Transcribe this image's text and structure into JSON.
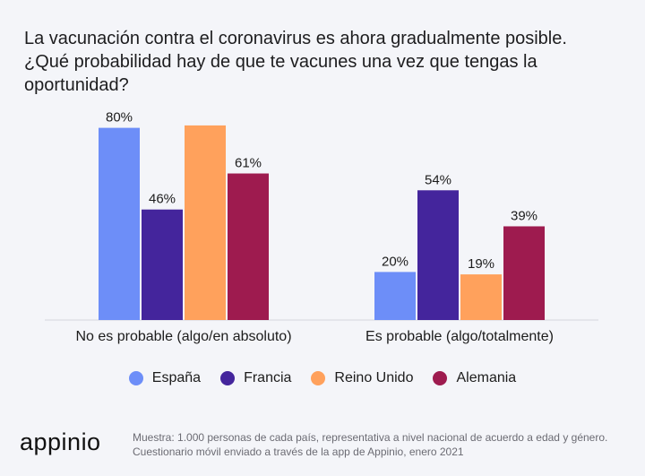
{
  "title_lines": [
    "La vacunación contra el coronavirus es ahora gradualmente posible.",
    "¿Qué probabilidad hay de que te vacunes una vez que tengas la",
    "oportunidad?"
  ],
  "chart_data": {
    "type": "bar",
    "title": "La vacunación contra el coronavirus es ahora gradualmente posible. ¿Qué probabilidad hay de que te vacunes una vez que tengas la oportunidad?",
    "categories": [
      "No es probable (algo/en absoluto)",
      "Es probable (algo/totalmente)"
    ],
    "series": [
      {
        "name": "España",
        "color": "#6d8ef8",
        "values": [
          80,
          20
        ],
        "labels": [
          "80%",
          "20%"
        ]
      },
      {
        "name": "Francia",
        "color": "#44259c",
        "values": [
          46,
          54
        ],
        "labels": [
          "46%",
          "54%"
        ]
      },
      {
        "name": "Reino Unido",
        "color": "#ffa15c",
        "values": [
          81,
          19
        ],
        "labels": [
          "",
          "19%"
        ]
      },
      {
        "name": "Alemania",
        "color": "#9e1b4f",
        "values": [
          61,
          39
        ],
        "labels": [
          "61%",
          "39%"
        ]
      }
    ],
    "ylim": [
      0,
      100
    ],
    "xlabel": "",
    "ylabel": "",
    "legend": "bottom-center",
    "grid": false
  },
  "logo": "appinio",
  "note": "Muestra: 1.000 personas de cada país, representativa a nivel nacional de acuerdo a edad y género. Cuestionario móvil enviado a través de la app de Appinio, enero 2021"
}
